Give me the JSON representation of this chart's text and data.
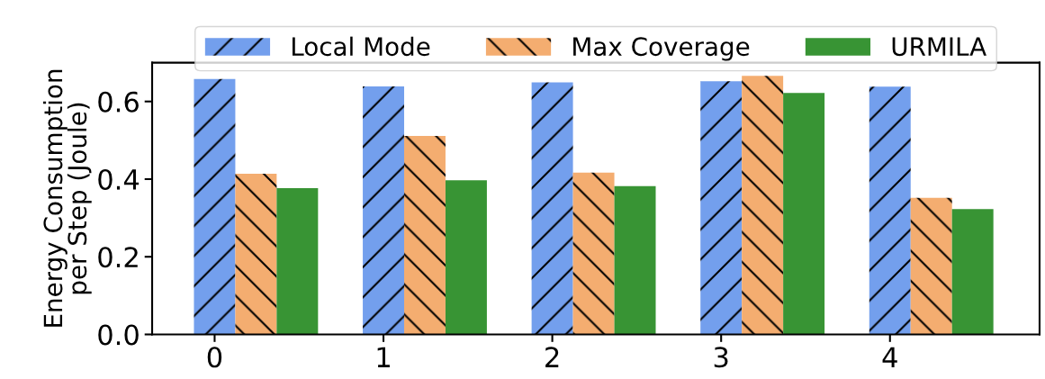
{
  "chart_data": {
    "type": "bar",
    "ylabel": "Energy Consumption\nper Step (Joule)",
    "categories": [
      "0",
      "1",
      "2",
      "3",
      "4"
    ],
    "series": [
      {
        "name": "Local Mode",
        "color": "#739fed",
        "values": [
          0.658,
          0.639,
          0.649,
          0.652,
          0.638
        ]
      },
      {
        "name": "Max Coverage",
        "color": "#f4ad70",
        "values": [
          0.414,
          0.511,
          0.417,
          0.666,
          0.352
        ]
      },
      {
        "name": "URMILA",
        "color": "#389434",
        "values": [
          0.377,
          0.397,
          0.382,
          0.622,
          0.323
        ]
      }
    ],
    "ylim": [
      0,
      0.7
    ],
    "yticks": [
      {
        "value": 0,
        "label": "0.0"
      },
      0.2,
      0.4,
      0.6
    ],
    "grid": false,
    "legend": "top"
  }
}
